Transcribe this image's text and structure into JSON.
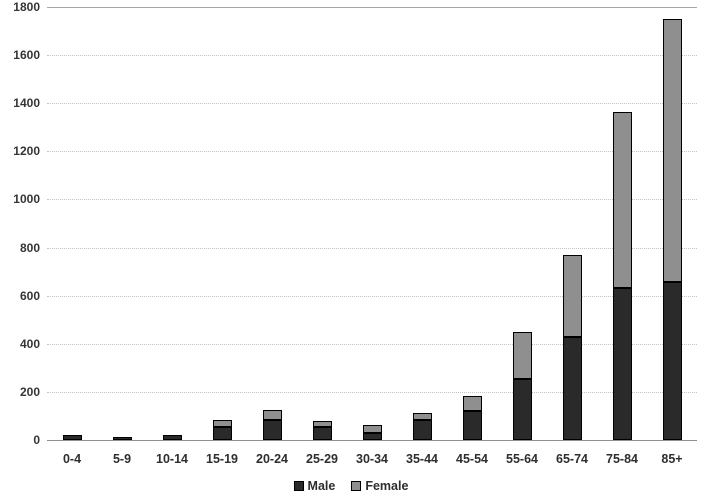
{
  "chart_data": {
    "type": "bar",
    "stacked": true,
    "title": "",
    "xlabel": "",
    "ylabel": "",
    "categories": [
      "0-4",
      "5-9",
      "10-14",
      "15-19",
      "20-24",
      "25-29",
      "30-34",
      "35-44",
      "45-54",
      "55-64",
      "65-74",
      "75-84",
      "85+"
    ],
    "series": [
      {
        "name": "Male",
        "color": "#2a2a2a",
        "values": [
          20,
          13,
          20,
          55,
          85,
          55,
          30,
          84,
          120,
          252,
          430,
          633,
          658
        ]
      },
      {
        "name": "Female",
        "color": "#8f8f8f",
        "values": [
          0,
          0,
          0,
          27,
          40,
          23,
          31,
          28,
          62,
          198,
          340,
          729,
          1092
        ]
      }
    ],
    "totals": [
      20,
      13,
      20,
      82,
      125,
      78,
      61,
      112,
      182,
      450,
      770,
      1362,
      1750
    ],
    "ylim": [
      0,
      1800
    ],
    "ytick_step": 200,
    "yticks": [
      0,
      200,
      400,
      600,
      800,
      1000,
      1200,
      1400,
      1600,
      1800
    ],
    "grid": "horizontal-dotted",
    "top_border_line": true,
    "legend_position": "bottom-center",
    "legend_labels": [
      "Male",
      "Female"
    ],
    "colors": {
      "male_fill": "#2a2a2a",
      "female_fill": "#8f8f8f",
      "segment_border": "#000000",
      "gridline": "#c3c3c3",
      "top_line": "#a6a6a6",
      "axis_line": "#8f8f8f",
      "tick_text": "#2e2e2e"
    }
  }
}
